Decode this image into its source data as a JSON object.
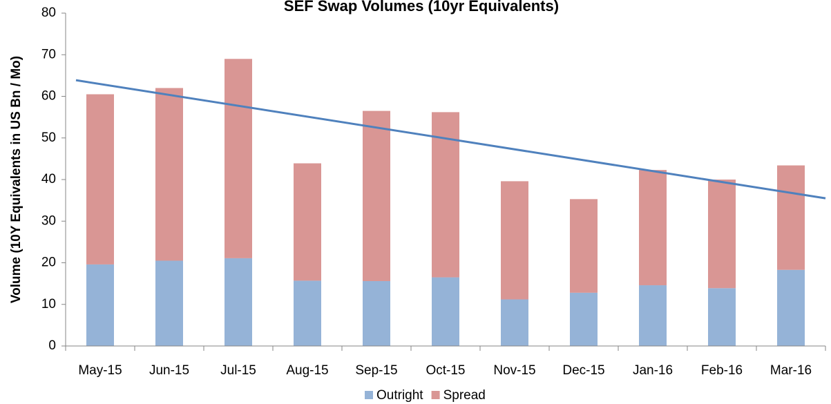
{
  "chart_data": {
    "type": "stacked_bar",
    "title": "SEF Swap Volumes (10yr Equivalents)",
    "y_label": "Volume (10Y Equivalents in US Bn / Mo)",
    "categories": [
      "May-15",
      "Jun-15",
      "Jul-15",
      "Aug-15",
      "Sep-15",
      "Oct-15",
      "Nov-15",
      "Dec-15",
      "Jan-16",
      "Feb-16",
      "Mar-16"
    ],
    "series": [
      {
        "name": "Outright",
        "color": "#95b3d7",
        "values": [
          19.6,
          20.5,
          21.1,
          15.7,
          15.6,
          16.5,
          11.2,
          12.8,
          14.6,
          13.9,
          18.3
        ]
      },
      {
        "name": "Spread",
        "color": "#d99694",
        "values": [
          40.9,
          41.5,
          47.9,
          28.2,
          40.9,
          39.7,
          28.4,
          22.5,
          27.7,
          26.1,
          25.1
        ]
      }
    ],
    "ylim": [
      0,
      80
    ],
    "yticks": [
      0,
      10,
      20,
      30,
      40,
      50,
      60,
      70,
      80
    ],
    "trendline": "linear",
    "trendline_color": "#4f81bd",
    "legend": "bottom",
    "grid": false
  }
}
